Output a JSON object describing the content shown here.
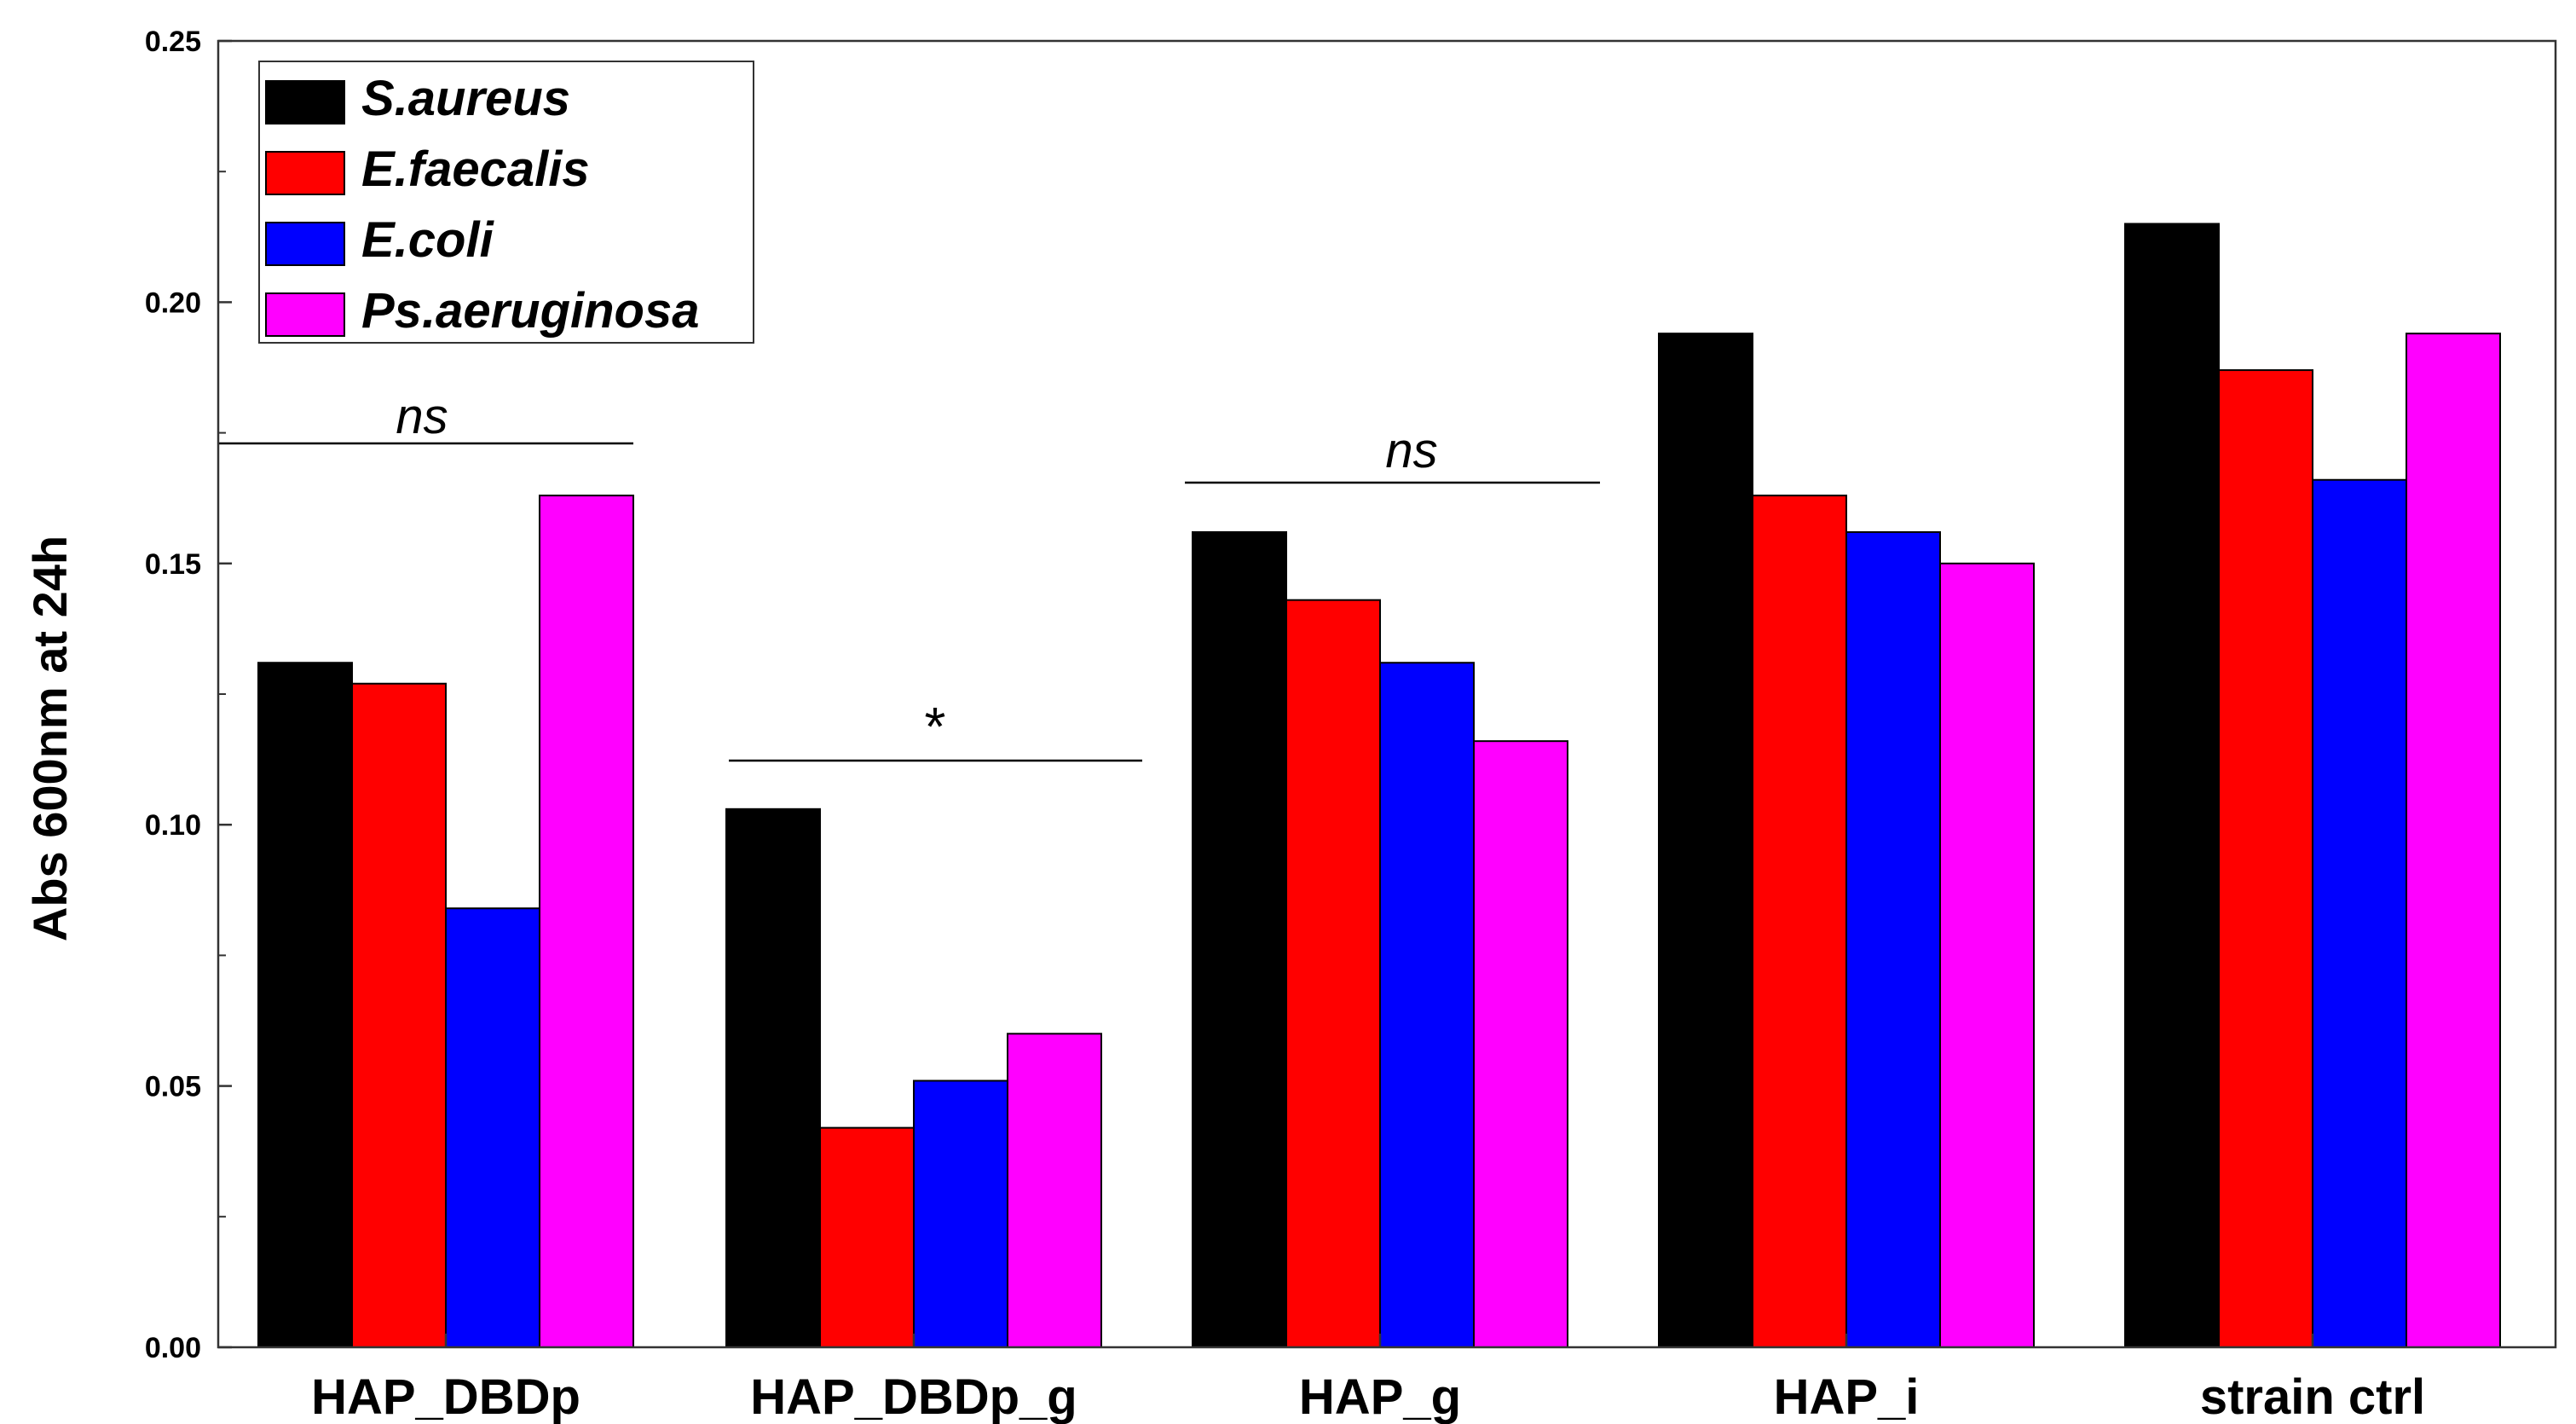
{
  "chart_data": {
    "type": "bar",
    "title": "",
    "xlabel": "",
    "ylabel": "Abs 600nm at 24h",
    "ylim": [
      0,
      0.25
    ],
    "yticks": [
      "0.00",
      "0.05",
      "0.10",
      "0.15",
      "0.20",
      "0.25"
    ],
    "categories": [
      "HAP_DBDp",
      "HAP_DBDp_g",
      "HAP_g",
      "HAP_i",
      "strain ctrl"
    ],
    "series": [
      {
        "name": "S.aureus",
        "color": "#000000",
        "values": [
          0.131,
          0.103,
          0.156,
          0.194,
          0.215
        ]
      },
      {
        "name": "E.faecalis",
        "color": "#ff0000",
        "values": [
          0.127,
          0.042,
          0.143,
          0.163,
          0.187
        ]
      },
      {
        "name": "E.coli",
        "color": "#0000ff",
        "values": [
          0.084,
          0.051,
          0.131,
          0.156,
          0.166
        ]
      },
      {
        "name": "Ps.aeruginosa",
        "color": "#ff00ff",
        "values": [
          0.163,
          0.06,
          0.116,
          0.15,
          0.194
        ]
      }
    ],
    "legend_position": "top-left",
    "annotations": [
      {
        "text": "ns",
        "category": 0,
        "y": 0.172
      },
      {
        "text": "*",
        "category": 1,
        "y": 0.112
      },
      {
        "text": "ns",
        "category": 2,
        "y": 0.165
      }
    ]
  }
}
